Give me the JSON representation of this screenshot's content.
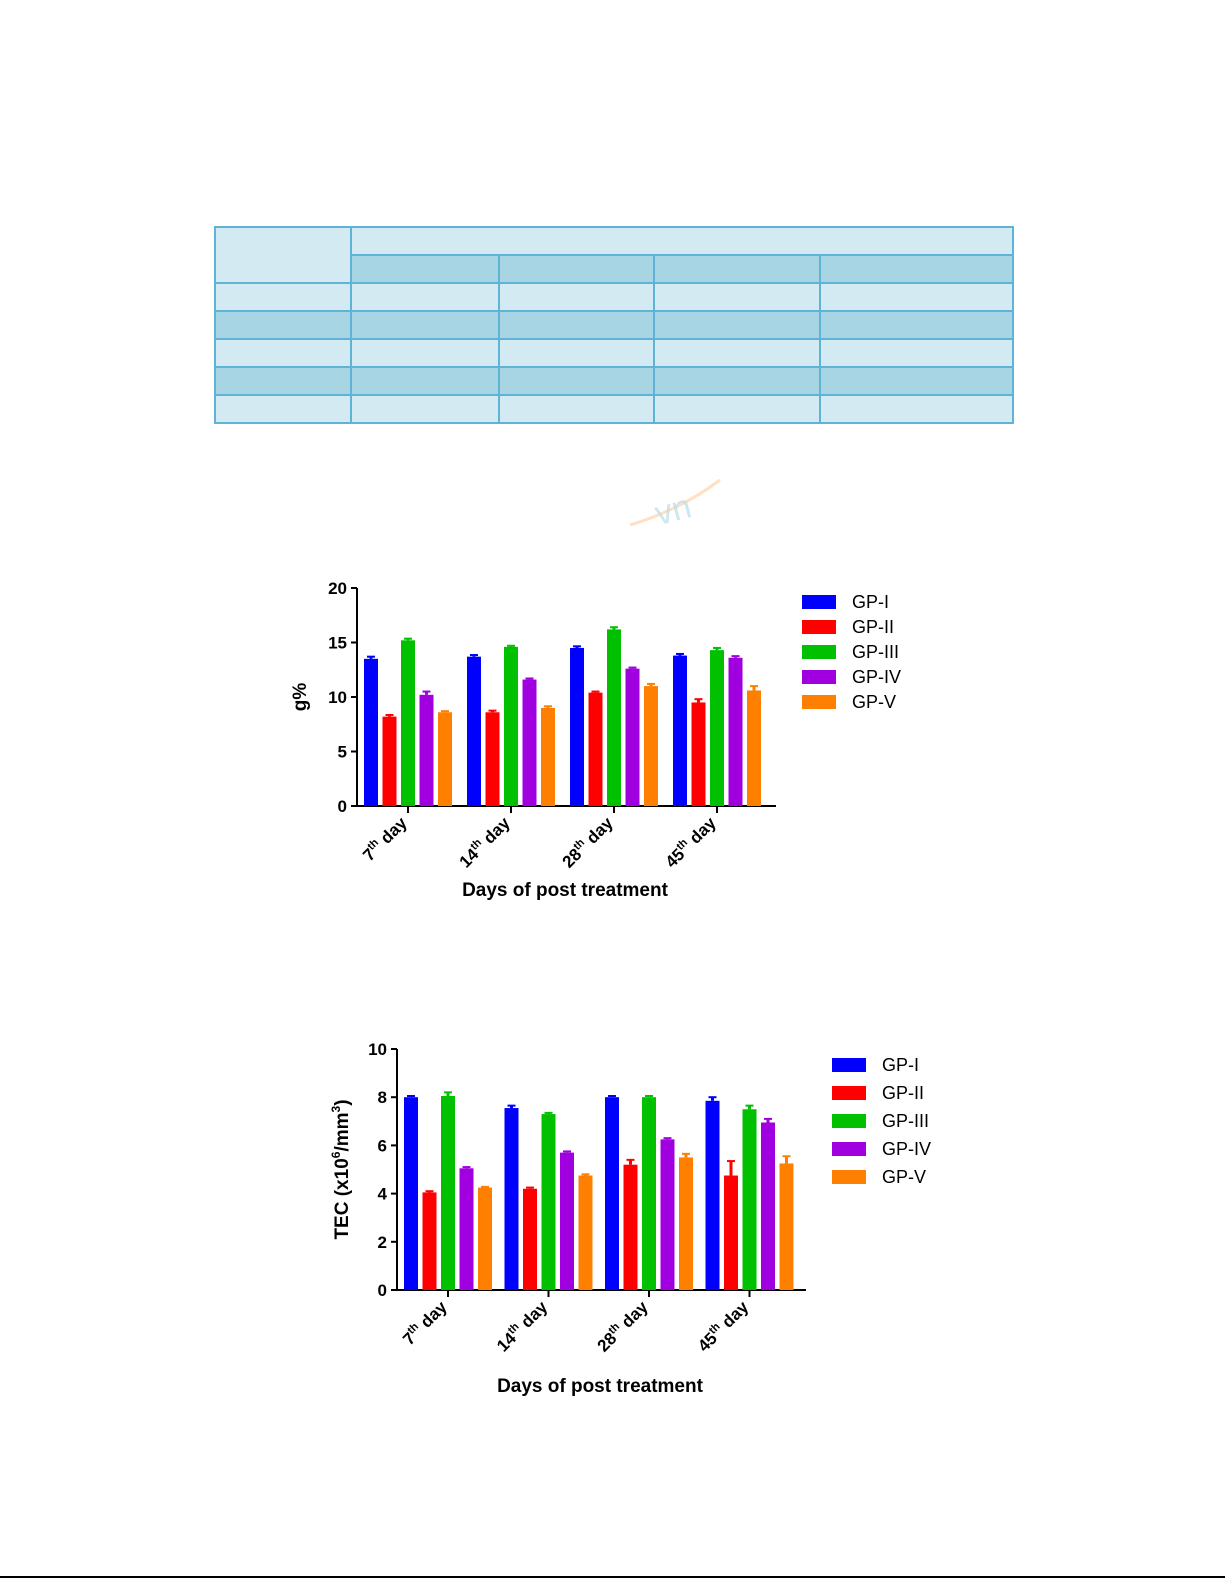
{
  "table": {
    "rows": 7,
    "col_widths": [
      134,
      146,
      153,
      164,
      191
    ]
  },
  "watermark_text": "vn",
  "chart_data": [
    {
      "type": "bar",
      "title": "",
      "xlabel": "Days of post treatment",
      "ylabel": "g%",
      "ylim": [
        0,
        20
      ],
      "yticks": [
        0,
        5,
        10,
        15,
        20
      ],
      "categories": [
        "7th day",
        "14th day",
        "28th day",
        "45th day"
      ],
      "category_labels": [
        {
          "num": "7",
          "sup": "th",
          "rest": " day"
        },
        {
          "num": "14",
          "sup": "th",
          "rest": " day"
        },
        {
          "num": "28",
          "sup": "th",
          "rest": " day"
        },
        {
          "num": "45",
          "sup": "th",
          "rest": " day"
        }
      ],
      "legend_position": "right",
      "series": [
        {
          "name": "GP-I",
          "color": "#0000ff",
          "values": [
            13.5,
            13.7,
            14.5,
            13.8
          ],
          "errors": [
            0.2,
            0.15,
            0.15,
            0.15
          ]
        },
        {
          "name": "GP-II",
          "color": "#ff0000",
          "values": [
            8.2,
            8.6,
            10.4,
            9.5
          ],
          "errors": [
            0.15,
            0.15,
            0.1,
            0.3
          ]
        },
        {
          "name": "GP-III",
          "color": "#00c000",
          "values": [
            15.2,
            14.6,
            16.2,
            14.3
          ],
          "errors": [
            0.15,
            0.1,
            0.2,
            0.2
          ]
        },
        {
          "name": "GP-IV",
          "color": "#a000e0",
          "values": [
            10.2,
            11.6,
            12.6,
            13.6
          ],
          "errors": [
            0.3,
            0.1,
            0.1,
            0.15
          ]
        },
        {
          "name": "GP-V",
          "color": "#ff8000",
          "values": [
            8.6,
            9.0,
            11.0,
            10.6
          ],
          "errors": [
            0.1,
            0.15,
            0.2,
            0.4
          ]
        }
      ]
    },
    {
      "type": "bar",
      "title": "",
      "xlabel": "Days of post treatment",
      "ylabel": "TEC (x10⁶/mm³)",
      "ylabel_parts": {
        "pre": "TEC (x10",
        "sup1": "6",
        "mid": "/mm",
        "sup2": "3",
        "post": ")"
      },
      "ylim": [
        0,
        10
      ],
      "yticks": [
        0,
        2,
        4,
        6,
        8,
        10
      ],
      "categories": [
        "7th day",
        "14th day",
        "28th day",
        "45th day"
      ],
      "category_labels": [
        {
          "num": "7",
          "sup": "th",
          "rest": " day"
        },
        {
          "num": "14",
          "sup": "th",
          "rest": " day"
        },
        {
          "num": "28",
          "sup": "th",
          "rest": " day"
        },
        {
          "num": "45",
          "sup": "th",
          "rest": " day"
        }
      ],
      "legend_position": "right",
      "series": [
        {
          "name": "GP-I",
          "color": "#0000ff",
          "values": [
            8.0,
            7.55,
            8.0,
            7.85
          ],
          "errors": [
            0.05,
            0.1,
            0.05,
            0.15
          ]
        },
        {
          "name": "GP-II",
          "color": "#ff0000",
          "values": [
            4.05,
            4.2,
            5.2,
            4.75
          ],
          "errors": [
            0.05,
            0.05,
            0.2,
            0.6
          ]
        },
        {
          "name": "GP-III",
          "color": "#00c000",
          "values": [
            8.05,
            7.3,
            8.0,
            7.5
          ],
          "errors": [
            0.15,
            0.05,
            0.05,
            0.15
          ]
        },
        {
          "name": "GP-IV",
          "color": "#a000e0",
          "values": [
            5.05,
            5.7,
            6.25,
            6.95
          ],
          "errors": [
            0.05,
            0.05,
            0.05,
            0.15
          ]
        },
        {
          "name": "GP-V",
          "color": "#ff8000",
          "values": [
            4.25,
            4.75,
            5.5,
            5.25
          ],
          "errors": [
            0.03,
            0.05,
            0.15,
            0.3
          ]
        }
      ]
    }
  ]
}
